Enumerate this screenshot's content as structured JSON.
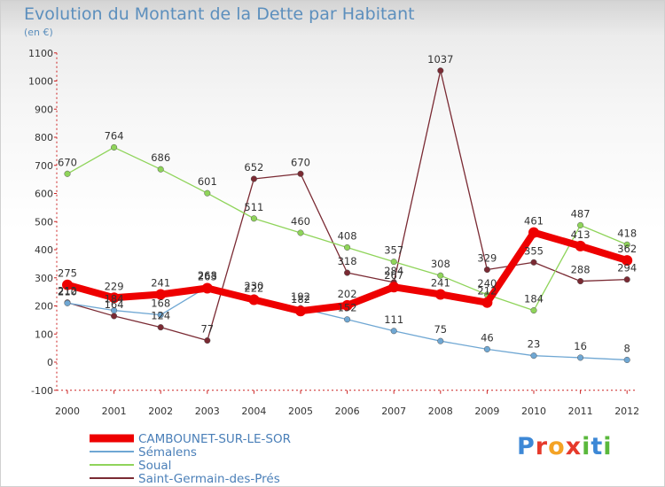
{
  "chart_data": {
    "type": "line",
    "title": "Evolution du Montant de la Dette par Habitant",
    "unit_label": "(en €)",
    "ylim": [
      -100,
      1100
    ],
    "yticks": [
      -100,
      0,
      100,
      200,
      300,
      400,
      500,
      600,
      700,
      800,
      900,
      1000,
      1100
    ],
    "x": [
      "2000",
      "2001",
      "2002",
      "2003",
      "2004",
      "2005",
      "2006",
      "2007",
      "2008",
      "2009",
      "2010",
      "2011",
      "2012"
    ],
    "series": [
      {
        "name": "CAMBOUNET-SUR-LE-SOR",
        "color": "#ee0000",
        "width": 8,
        "values": [
          275,
          229,
          241,
          263,
          222,
          182,
          202,
          267,
          241,
          212,
          461,
          413,
          362
        ]
      },
      {
        "name": "Sémalens",
        "color": "#6fa7d3",
        "width": 1.3,
        "values": [
          210,
          184,
          168,
          268,
          230,
          192,
          152,
          111,
          75,
          46,
          23,
          16,
          8
        ]
      },
      {
        "name": "Soual",
        "color": "#8fd45a",
        "width": 1.3,
        "values": [
          670,
          764,
          686,
          601,
          511,
          460,
          408,
          357,
          308,
          240,
          184,
          487,
          418
        ]
      },
      {
        "name": "Saint-Germain-des-Prés",
        "color": "#7a2a33",
        "width": 1.3,
        "values": [
          212,
          164,
          124,
          77,
          652,
          670,
          318,
          284,
          1037,
          329,
          355,
          288,
          294
        ]
      }
    ],
    "grid": false,
    "legend_position": "bottom-left"
  },
  "logo": {
    "letters": [
      "P",
      "r",
      "o",
      "x",
      "i",
      "t",
      "i"
    ],
    "colors": [
      "#3d88d6",
      "#e63a2b",
      "#f4a325",
      "#e63a2b",
      "#5ab83c",
      "#3d88d6",
      "#5ab83c"
    ]
  }
}
